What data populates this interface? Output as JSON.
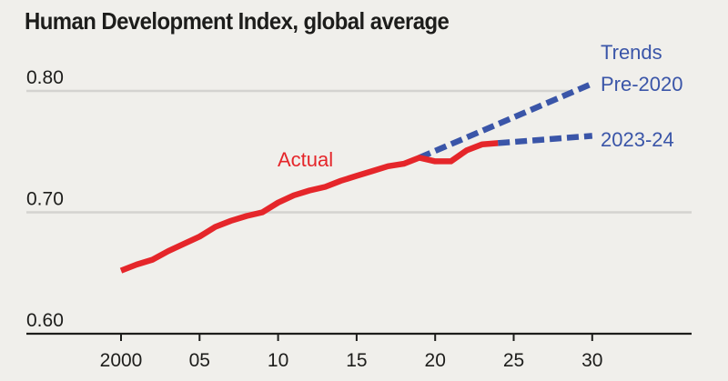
{
  "chart_data": {
    "type": "line",
    "title": "Human Development Index, global average",
    "xlabel": "",
    "ylabel": "",
    "xlim": [
      1994,
      2036
    ],
    "ylim": [
      0.6,
      0.82
    ],
    "grid": true,
    "y_ticks": [
      {
        "value": 0.6,
        "label": "0.60"
      },
      {
        "value": 0.7,
        "label": "0.70"
      },
      {
        "value": 0.8,
        "label": "0.80"
      }
    ],
    "x_ticks": [
      {
        "value": 2000,
        "label": "2000"
      },
      {
        "value": 2005,
        "label": "05"
      },
      {
        "value": 2010,
        "label": "10"
      },
      {
        "value": 2015,
        "label": "15"
      },
      {
        "value": 2020,
        "label": "20"
      },
      {
        "value": 2025,
        "label": "25"
      },
      {
        "value": 2030,
        "label": "30"
      }
    ],
    "series": [
      {
        "name": "Actual",
        "label": "Actual",
        "color": "#e5262a",
        "style": "solid",
        "x": [
          2000,
          2001,
          2002,
          2003,
          2004,
          2005,
          2006,
          2007,
          2008,
          2009,
          2010,
          2011,
          2012,
          2013,
          2014,
          2015,
          2016,
          2017,
          2018,
          2019,
          2020,
          2021,
          2022,
          2023,
          2024
        ],
        "values": [
          0.652,
          0.657,
          0.661,
          0.668,
          0.674,
          0.68,
          0.688,
          0.693,
          0.697,
          0.7,
          0.708,
          0.714,
          0.718,
          0.721,
          0.726,
          0.73,
          0.734,
          0.738,
          0.74,
          0.745,
          0.742,
          0.742,
          0.751,
          0.756,
          0.757
        ]
      },
      {
        "name": "Trend Pre-2020",
        "label": "Pre-2020",
        "color": "#3a55a8",
        "style": "dashed",
        "x": [
          2019,
          2030
        ],
        "values": [
          0.745,
          0.806
        ]
      },
      {
        "name": "Trend 2023-24",
        "label": "2023-24",
        "color": "#3a55a8",
        "style": "dashed",
        "x": [
          2024,
          2030
        ],
        "values": [
          0.757,
          0.763
        ]
      }
    ],
    "legend": {
      "heading": "Trends",
      "placement": "top-right"
    }
  }
}
